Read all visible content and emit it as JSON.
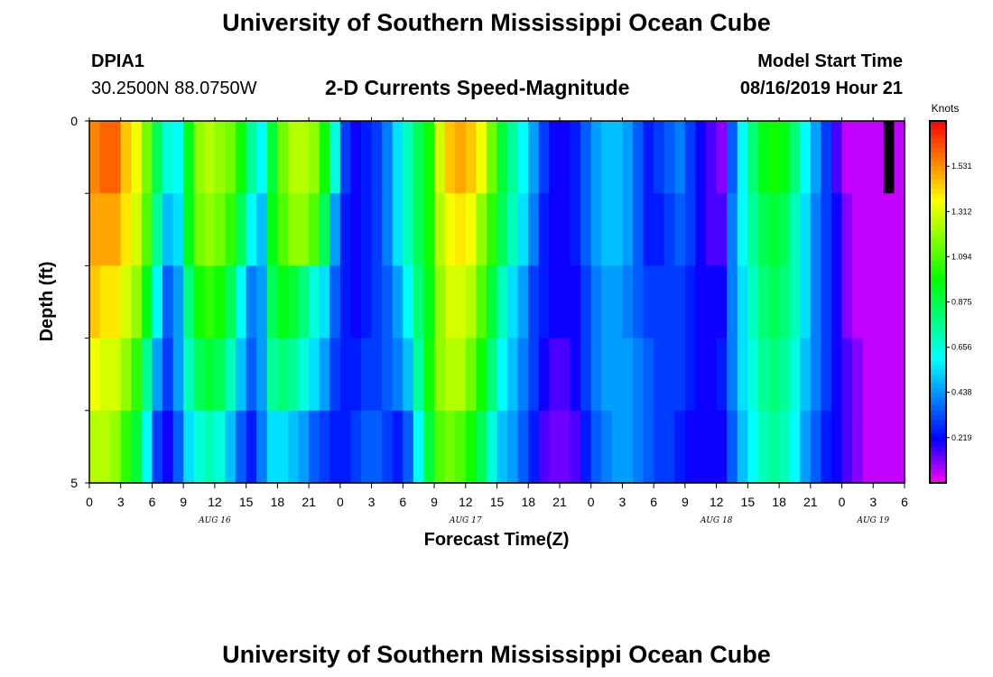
{
  "page": {
    "title_top": "University of Southern Mississippi Ocean Cube",
    "title_bottom": "University of Southern Mississippi Ocean Cube",
    "station_id": "DPIA1",
    "station_coords": "30.2500N 88.0750W",
    "model_start_label": "Model Start Time",
    "model_start_value": "08/16/2019 Hour 21"
  },
  "chart_data": {
    "type": "heatmap",
    "title": "2-D Currents Speed-Magnitude",
    "xlabel": "Forecast Time(Z)",
    "ylabel": "Depth (ft)",
    "colorbar_label": "Knots",
    "colorbar_ticks": [
      "1.531",
      "1.312",
      "1.094",
      "0.875",
      "0.656",
      "0.438",
      "0.219"
    ],
    "colorbar_values": [
      1.531,
      1.312,
      1.094,
      0.875,
      0.656,
      0.438,
      0.219
    ],
    "vmin": 0.0,
    "vmax": 1.75,
    "y_range": [
      0,
      5
    ],
    "y_tick_labels": [
      "0",
      "5"
    ],
    "x_tick_labels": [
      "0",
      "3",
      "6",
      "9",
      "12",
      "15",
      "18",
      "21",
      "0",
      "3",
      "6",
      "9",
      "12",
      "15",
      "18",
      "21",
      "0",
      "3",
      "6",
      "9",
      "12",
      "15",
      "18",
      "21",
      "0",
      "3",
      "6"
    ],
    "date_labels": [
      {
        "text": "AUG 16",
        "tick_index": 4
      },
      {
        "text": "AUG 17",
        "tick_index": 12
      },
      {
        "text": "AUG 18",
        "tick_index": 20
      },
      {
        "text": "AUG 19",
        "tick_index": 25
      }
    ],
    "x_hours_start": 0,
    "x_hours_end": 78,
    "depth_layers": 5,
    "missing_value_note": "black cell at hour 76, top layer",
    "speed_grid_knots_by_layer": [
      [
        1.55,
        1.6,
        1.6,
        1.45,
        1.35,
        1.15,
        0.85,
        0.65,
        0.6,
        0.95,
        1.2,
        1.25,
        1.2,
        1.15,
        1.0,
        0.75,
        0.6,
        0.9,
        1.15,
        1.25,
        1.25,
        1.2,
        1.0,
        0.65,
        0.3,
        0.2,
        0.25,
        0.3,
        0.4,
        0.55,
        0.7,
        0.85,
        1.0,
        1.3,
        1.45,
        1.5,
        1.45,
        1.35,
        1.15,
        0.9,
        0.75,
        0.6,
        0.45,
        0.3,
        0.2,
        0.2,
        0.25,
        0.35,
        0.45,
        0.5,
        0.5,
        0.45,
        0.35,
        0.25,
        0.3,
        0.35,
        0.4,
        0.3,
        0.2,
        0.15,
        0.1,
        0.35,
        0.6,
        0.8,
        0.95,
        1.0,
        0.95,
        0.8,
        0.6,
        0.45,
        0.3,
        0.15,
        0.05,
        0.05,
        0.05,
        0.05,
        -1,
        0.05
      ],
      [
        1.5,
        1.5,
        1.5,
        1.4,
        1.3,
        1.1,
        0.75,
        0.5,
        0.55,
        0.95,
        1.15,
        1.2,
        1.15,
        1.05,
        0.85,
        0.6,
        0.5,
        0.95,
        1.1,
        1.2,
        1.2,
        1.1,
        0.85,
        0.45,
        0.25,
        0.2,
        0.25,
        0.3,
        0.4,
        0.55,
        0.7,
        0.85,
        1.0,
        1.25,
        1.35,
        1.4,
        1.35,
        1.2,
        1.05,
        0.85,
        0.7,
        0.55,
        0.4,
        0.25,
        0.2,
        0.2,
        0.25,
        0.35,
        0.45,
        0.5,
        0.5,
        0.45,
        0.35,
        0.25,
        0.25,
        0.3,
        0.35,
        0.3,
        0.2,
        0.15,
        0.15,
        0.4,
        0.6,
        0.75,
        0.85,
        0.9,
        0.85,
        0.7,
        0.55,
        0.4,
        0.3,
        0.2,
        0.1,
        0.05,
        0.05,
        0.05,
        0.05,
        0.05
      ],
      [
        1.45,
        1.4,
        1.4,
        1.3,
        1.2,
        0.95,
        0.6,
        0.35,
        0.45,
        0.8,
        1.0,
        1.05,
        1.0,
        0.85,
        0.6,
        0.4,
        0.45,
        0.85,
        0.95,
        0.9,
        0.8,
        0.65,
        0.55,
        0.35,
        0.25,
        0.2,
        0.25,
        0.3,
        0.35,
        0.45,
        0.6,
        0.8,
        0.95,
        1.2,
        1.3,
        1.3,
        1.25,
        1.1,
        0.9,
        0.7,
        0.55,
        0.45,
        0.3,
        0.25,
        0.2,
        0.2,
        0.2,
        0.3,
        0.4,
        0.45,
        0.45,
        0.4,
        0.35,
        0.3,
        0.3,
        0.3,
        0.3,
        0.25,
        0.2,
        0.2,
        0.2,
        0.4,
        0.55,
        0.7,
        0.8,
        0.85,
        0.8,
        0.7,
        0.55,
        0.4,
        0.3,
        0.2,
        0.1,
        0.05,
        0.05,
        0.05,
        0.05,
        0.05
      ],
      [
        1.35,
        1.3,
        1.3,
        1.2,
        1.05,
        0.75,
        0.45,
        0.3,
        0.45,
        0.7,
        0.85,
        0.9,
        0.85,
        0.7,
        0.5,
        0.35,
        0.45,
        0.75,
        0.8,
        0.75,
        0.65,
        0.55,
        0.45,
        0.3,
        0.25,
        0.25,
        0.3,
        0.3,
        0.35,
        0.4,
        0.5,
        0.75,
        1.0,
        1.2,
        1.25,
        1.25,
        1.15,
        1.0,
        0.8,
        0.6,
        0.5,
        0.4,
        0.3,
        0.2,
        0.15,
        0.15,
        0.2,
        0.3,
        0.4,
        0.45,
        0.45,
        0.45,
        0.4,
        0.35,
        0.3,
        0.3,
        0.3,
        0.25,
        0.2,
        0.2,
        0.25,
        0.4,
        0.55,
        0.65,
        0.75,
        0.8,
        0.75,
        0.65,
        0.5,
        0.4,
        0.3,
        0.2,
        0.15,
        0.1,
        0.05,
        0.05,
        0.05,
        0.05
      ],
      [
        1.25,
        1.25,
        1.2,
        1.05,
        0.9,
        0.6,
        0.3,
        0.2,
        0.35,
        0.55,
        0.65,
        0.7,
        0.65,
        0.5,
        0.35,
        0.25,
        0.4,
        0.55,
        0.55,
        0.5,
        0.45,
        0.35,
        0.3,
        0.25,
        0.25,
        0.3,
        0.35,
        0.35,
        0.3,
        0.25,
        0.35,
        0.6,
        0.9,
        1.1,
        1.15,
        1.1,
        1.0,
        0.85,
        0.65,
        0.5,
        0.45,
        0.35,
        0.25,
        0.15,
        0.12,
        0.12,
        0.15,
        0.25,
        0.35,
        0.4,
        0.45,
        0.45,
        0.4,
        0.35,
        0.3,
        0.3,
        0.25,
        0.2,
        0.2,
        0.2,
        0.2,
        0.35,
        0.5,
        0.6,
        0.7,
        0.75,
        0.7,
        0.6,
        0.45,
        0.35,
        0.25,
        0.2,
        0.15,
        0.1,
        0.05,
        0.05,
        0.05,
        0.05
      ]
    ]
  }
}
